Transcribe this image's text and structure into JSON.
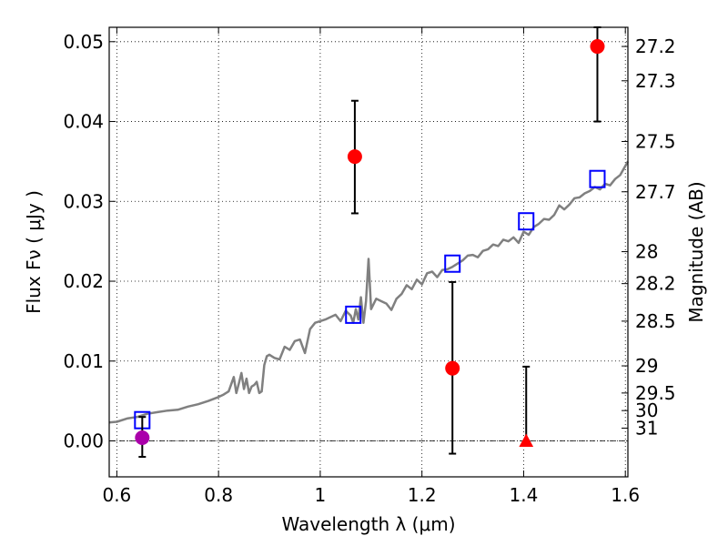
{
  "chart_data": {
    "type": "scatter",
    "xlabel": "Wavelength  λ (μm)",
    "ylabel": "Flux  Fν  ( μJy )",
    "y2label": "Magnitude (AB)",
    "xlim": [
      0.585,
      1.605
    ],
    "ylim": [
      -0.0045,
      0.0518
    ],
    "x_ticks": [
      0.6,
      0.8,
      1.0,
      1.2,
      1.4,
      1.6
    ],
    "x_tick_labels": [
      "0.6",
      "0.8",
      "1",
      "1.2",
      "1.4",
      "1.6"
    ],
    "y_ticks": [
      0.0,
      0.01,
      0.02,
      0.03,
      0.04,
      0.05
    ],
    "y_tick_labels": [
      "0.00",
      "0.01",
      "0.02",
      "0.03",
      "0.04",
      "0.05"
    ],
    "mag_ticks": [
      {
        "label": "27.2",
        "flux": 0.0494
      },
      {
        "label": "27.3",
        "flux": 0.0451
      },
      {
        "label": "27.5",
        "flux": 0.0375
      },
      {
        "label": "27.7",
        "flux": 0.0312
      },
      {
        "label": "28",
        "flux": 0.0237
      },
      {
        "label": "28.2",
        "flux": 0.0197
      },
      {
        "label": "28.5",
        "flux": 0.015
      },
      {
        "label": "29",
        "flux": 0.0094
      },
      {
        "label": "29.5",
        "flux": 0.006
      },
      {
        "label": "30",
        "flux": 0.0038
      },
      {
        "label": "31",
        "flux": 0.0016
      }
    ],
    "grid": true,
    "zero_line": 0.0,
    "model_spectrum": {
      "color": "#808080",
      "x": [
        0.585,
        0.6,
        0.62,
        0.64,
        0.66,
        0.68,
        0.7,
        0.72,
        0.74,
        0.76,
        0.78,
        0.8,
        0.81,
        0.82,
        0.83,
        0.835,
        0.84,
        0.845,
        0.85,
        0.855,
        0.86,
        0.865,
        0.87,
        0.875,
        0.88,
        0.885,
        0.89,
        0.895,
        0.9,
        0.91,
        0.92,
        0.93,
        0.94,
        0.95,
        0.96,
        0.97,
        0.98,
        0.99,
        1.0,
        1.01,
        1.02,
        1.03,
        1.04,
        1.05,
        1.06,
        1.065,
        1.07,
        1.075,
        1.08,
        1.085,
        1.09,
        1.095,
        1.1,
        1.11,
        1.12,
        1.13,
        1.14,
        1.15,
        1.16,
        1.17,
        1.18,
        1.19,
        1.2,
        1.21,
        1.22,
        1.23,
        1.24,
        1.25,
        1.26,
        1.27,
        1.28,
        1.29,
        1.3,
        1.31,
        1.32,
        1.33,
        1.34,
        1.35,
        1.36,
        1.37,
        1.38,
        1.39,
        1.4,
        1.41,
        1.42,
        1.43,
        1.44,
        1.45,
        1.46,
        1.47,
        1.48,
        1.49,
        1.5,
        1.51,
        1.52,
        1.53,
        1.54,
        1.55,
        1.56,
        1.57,
        1.58,
        1.59,
        1.605
      ],
      "y": [
        0.0023,
        0.0024,
        0.0028,
        0.003,
        0.0034,
        0.0036,
        0.0038,
        0.0039,
        0.0043,
        0.0046,
        0.005,
        0.0055,
        0.0058,
        0.0062,
        0.008,
        0.006,
        0.0072,
        0.0085,
        0.0065,
        0.0078,
        0.006,
        0.0068,
        0.007,
        0.0074,
        0.006,
        0.0062,
        0.0095,
        0.0106,
        0.0108,
        0.0104,
        0.0102,
        0.0118,
        0.0114,
        0.0125,
        0.0127,
        0.011,
        0.014,
        0.0148,
        0.015,
        0.0152,
        0.0155,
        0.0158,
        0.015,
        0.0163,
        0.0157,
        0.0148,
        0.0165,
        0.0152,
        0.018,
        0.0148,
        0.0175,
        0.0228,
        0.0165,
        0.0178,
        0.0175,
        0.0172,
        0.0164,
        0.0178,
        0.0184,
        0.0195,
        0.019,
        0.0202,
        0.0196,
        0.021,
        0.0212,
        0.0205,
        0.0214,
        0.0215,
        0.0218,
        0.0222,
        0.0226,
        0.0232,
        0.0233,
        0.023,
        0.0238,
        0.024,
        0.0246,
        0.0244,
        0.0252,
        0.025,
        0.0255,
        0.0248,
        0.0262,
        0.0258,
        0.0268,
        0.0272,
        0.0278,
        0.0277,
        0.0283,
        0.0295,
        0.029,
        0.0296,
        0.0304,
        0.0305,
        0.031,
        0.0313,
        0.0318,
        0.0315,
        0.0322,
        0.032,
        0.0328,
        0.0333,
        0.035
      ]
    },
    "model_photometry": {
      "color": "#0000ff",
      "x": [
        0.65,
        1.065,
        1.26,
        1.405,
        1.545
      ],
      "y": [
        0.0026,
        0.0158,
        0.0222,
        0.0275,
        0.0328
      ]
    },
    "observed_photometry": {
      "color": "#ff0000",
      "x": [
        1.068,
        1.26,
        1.545
      ],
      "y": [
        0.0356,
        0.0091,
        0.0494
      ],
      "yerr_low": [
        0.0285,
        -0.0016,
        0.04
      ],
      "yerr_high": [
        0.0426,
        0.0199,
        0.0518
      ]
    },
    "optical_point": {
      "color": "#aa00aa",
      "x": 0.65,
      "y": 0.0004,
      "yerr_low": -0.002,
      "yerr_high": 0.003
    },
    "upper_limit": {
      "color": "#ff0000",
      "x": 1.405,
      "y": 0.0,
      "yerr_high": 0.0093
    }
  }
}
